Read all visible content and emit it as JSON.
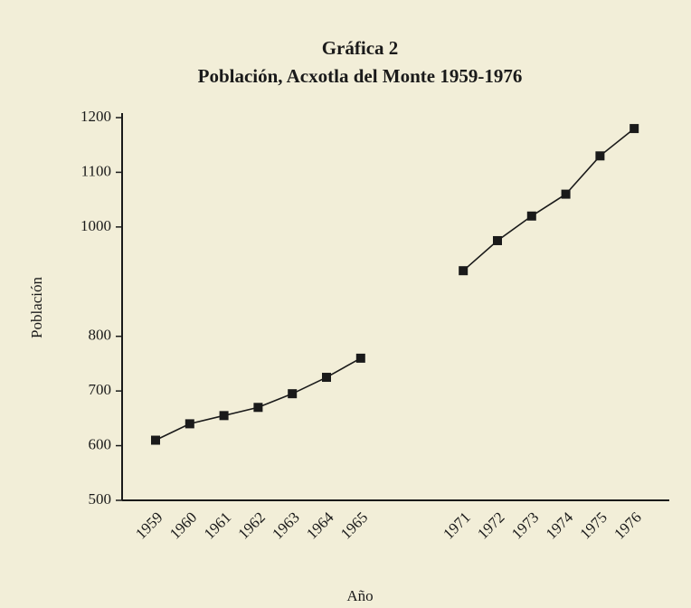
{
  "chart_data": {
    "type": "line",
    "title": "Gráfica 2",
    "subtitle": "Población, Acxotla del Monte 1959-1976",
    "y_label": "Población",
    "x_label": "Año",
    "categories": [
      "1959",
      "1960",
      "1961",
      "1962",
      "1963",
      "1964",
      "1965",
      null,
      null,
      "1971",
      "1972",
      "1973",
      "1974",
      "1975",
      "1976"
    ],
    "series": [
      {
        "name": "Población",
        "color": "#1a1a1a",
        "values": [
          610,
          640,
          655,
          670,
          695,
          725,
          760,
          null,
          null,
          920,
          975,
          1020,
          1060,
          1130,
          1180
        ]
      }
    ],
    "ylim": [
      500,
      1200
    ],
    "yticks": [
      500,
      600,
      700,
      800,
      1000,
      1100,
      1200
    ],
    "grid": false
  }
}
